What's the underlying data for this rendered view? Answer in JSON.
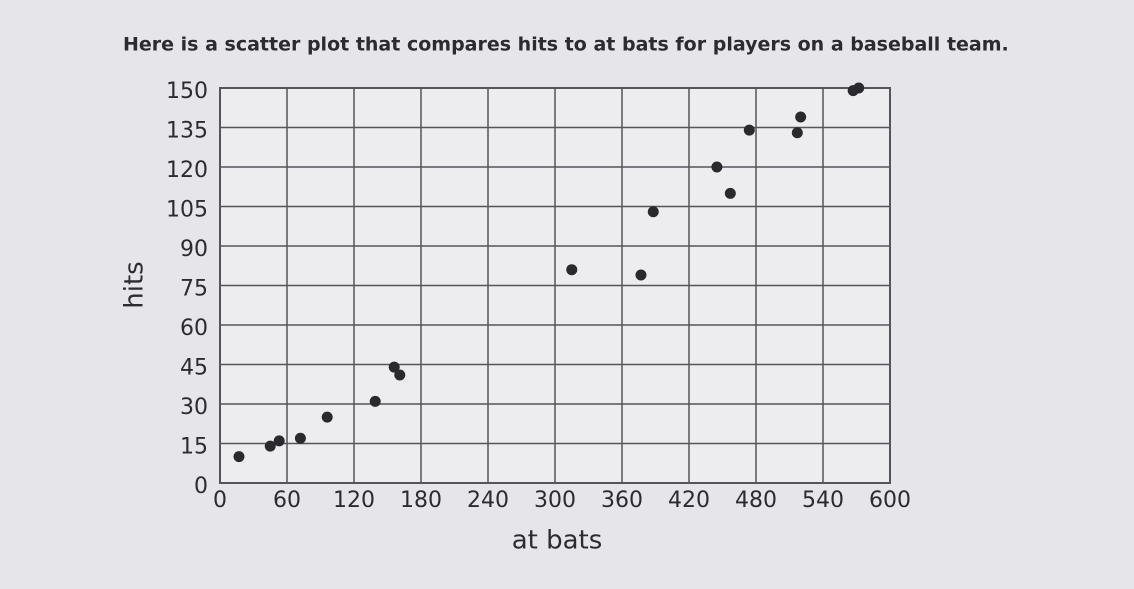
{
  "chart_data": {
    "type": "scatter",
    "title": "Here is a scatter plot that compares hits to at bats for players on a baseball team.",
    "x_label": "at bats",
    "y_label": "hits",
    "x": [
      17,
      45,
      53,
      72,
      96,
      139,
      156,
      161,
      315,
      377,
      388,
      445,
      457,
      474,
      517,
      520,
      567,
      572
    ],
    "values": [
      10,
      14,
      16,
      17,
      25,
      31,
      44,
      41,
      81,
      79,
      103,
      120,
      110,
      134,
      133,
      139,
      149,
      150
    ],
    "color": "#2a2a2e",
    "xlim": [
      0,
      600
    ],
    "xticks": [
      0,
      60,
      120,
      180,
      240,
      300,
      360,
      420,
      480,
      540,
      600
    ],
    "ylim": [
      0,
      150
    ],
    "yticks": [
      0,
      15,
      30,
      45,
      60,
      75,
      90,
      105,
      120,
      135,
      150
    ],
    "grid": true
  }
}
